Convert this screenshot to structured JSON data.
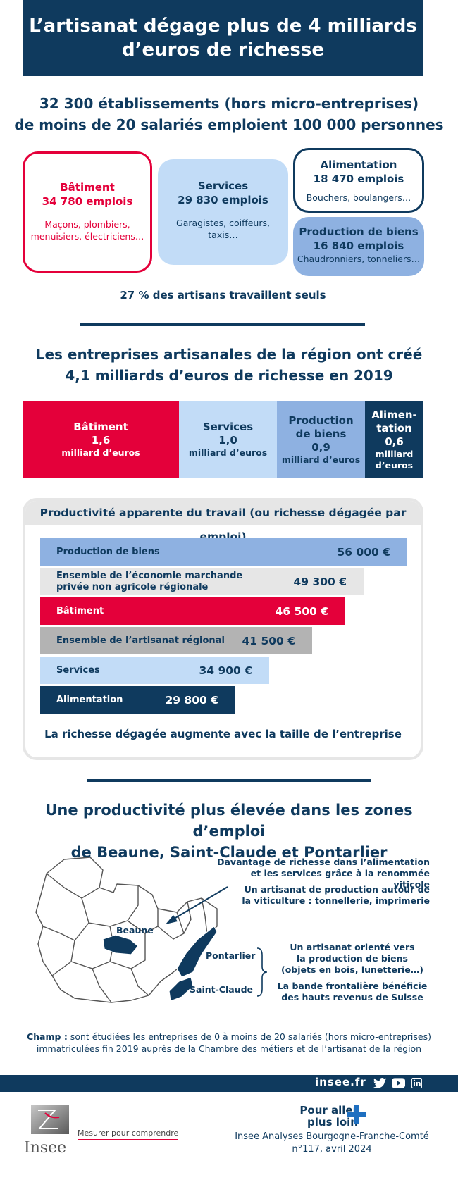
{
  "header": {
    "title_line1": "L’artisanat dégage plus de 4 milliards",
    "title_line2": "d’euros de richesse"
  },
  "section1": {
    "line1": "32 300 établissements (hors micro-entreprises)",
    "line2": "de moins de 20 salariés emploient 100 000 personnes",
    "cards": {
      "batiment": {
        "title": "Bâtiment",
        "jobs": "34 780 emplois",
        "desc1": "Maçons, plombiers,",
        "desc2": "menuisiers, électriciens…"
      },
      "services": {
        "title": "Services",
        "jobs": "29 830 emplois",
        "desc1": "Garagistes, coiffeurs,",
        "desc2": "taxis…"
      },
      "alimentation": {
        "title": "Alimentation",
        "jobs": "18 470 emplois",
        "desc1": "Bouchers, boulangers…"
      },
      "production": {
        "title": "Production de biens",
        "jobs": "16 840 emplois",
        "desc1": "Chaudronniers, tonneliers…"
      }
    },
    "solo": "27 % des artisans travaillent seuls"
  },
  "section2": {
    "line1": "Les entreprises artisanales de la région ont créé",
    "line2": "4,1 milliards d’euros de richesse en 2019",
    "segments": [
      {
        "name1": "Bâtiment",
        "name2": "",
        "value": "1,6",
        "unit1": "milliard d’euros",
        "unit2": "",
        "amount": 1.6,
        "color": "#e4003a"
      },
      {
        "name1": "Services",
        "name2": "",
        "value": "1,0",
        "unit1": "milliard d’euros",
        "unit2": "",
        "amount": 1.0,
        "color": "#c2dcf7"
      },
      {
        "name1": "Production",
        "name2": "de biens",
        "value": "0,9",
        "unit1": "milliard d’euros",
        "unit2": "",
        "amount": 0.9,
        "color": "#8eb1e1"
      },
      {
        "name1": "Alimen-",
        "name2": "tation",
        "value": "0,6",
        "unit1": "milliard",
        "unit2": "d’euros",
        "amount": 0.6,
        "color": "#0f3a5e"
      }
    ]
  },
  "productivity": {
    "title": "Productivité apparente du travail (ou richesse dégagée par emploi)",
    "bars": [
      {
        "label1": "Production de biens",
        "label2": "",
        "value_text": "56 000 €",
        "value": 56000,
        "color": "#8eb1e1",
        "text": "#0f3a5e"
      },
      {
        "label1": "Ensemble de l’économie marchande",
        "label2": "privée non agricole régionale",
        "value_text": "49 300 €",
        "value": 49300,
        "color": "#e6e6e6",
        "text": "#0f3a5e"
      },
      {
        "label1": "Bâtiment",
        "label2": "",
        "value_text": "46 500 €",
        "value": 46500,
        "color": "#e4003a",
        "text": "#ffffff"
      },
      {
        "label1": "Ensemble de l’artisanat régional",
        "label2": "",
        "value_text": "41 500 €",
        "value": 41500,
        "color": "#b3b3b3",
        "text": "#0f3a5e"
      },
      {
        "label1": "Services",
        "label2": "",
        "value_text": "34 900 €",
        "value": 34900,
        "color": "#c2dcf7",
        "text": "#0f3a5e"
      },
      {
        "label1": "Alimentation",
        "label2": "",
        "value_text": "29 800 €",
        "value": 29800,
        "color": "#0f3a5e",
        "text": "#ffffff"
      }
    ],
    "footer": "La richesse dégagée augmente avec la taille de l’entreprise"
  },
  "section3": {
    "line1": "Une productivité plus élevée dans les zones d’emploi",
    "line2": "de Beaune, Saint-Claude et Pontarlier",
    "ann_beaune_1a": "Davantage de richesse dans l’alimentation",
    "ann_beaune_1b": "et les services grâce à la renommée viticole",
    "ann_beaune_2a": "Un artisanat de production autour de",
    "ann_beaune_2b": "la viticulture : tonnellerie, imprimerie",
    "ann_jura_1a": "Un artisanat orienté vers",
    "ann_jura_1b": "la production de biens",
    "ann_jura_1c": "(objets en bois, lunetterie…)",
    "ann_jura_2a": "La bande frontalière bénéficie",
    "ann_jura_2b": "des hauts revenus de Suisse",
    "map_labels": {
      "beaune": "Beaune",
      "pontarlier": "Pontarlier",
      "saint_claude": "Saint-Claude"
    }
  },
  "champ": {
    "label": "Champ :",
    "text1": " sont étudiées les entreprises de 0 à moins de 20 salariés (hors micro-entreprises)",
    "text2": "immatriculées fin 2019 auprès de la Chambre des métiers et de l’artisanat de la région"
  },
  "footer": {
    "site": "insee.fr",
    "social_icons": [
      "twitter-icon",
      "youtube-icon",
      "linkedin-icon"
    ],
    "logo_text": "Insee",
    "tagline": "Mesurer pour comprendre",
    "pour_aller_1": "Pour aller",
    "pour_aller_2": "plus loin",
    "publication_1": "Insee Analyses Bourgogne-Franche-Comté",
    "publication_2": "n°117, avril 2024"
  },
  "colors": {
    "navy": "#0f3a5e",
    "red": "#e4003a",
    "light_blue": "#c2dcf7",
    "mid_blue": "#8eb1e1",
    "grey": "#e6e6e6"
  }
}
